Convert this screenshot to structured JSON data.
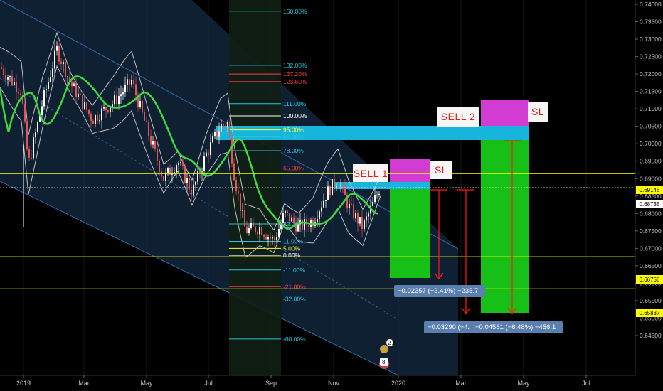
{
  "chart_data": {
    "type": "candlestick",
    "x_tick_labels": [
      "2019",
      "Mar",
      "May",
      "Jul",
      "Sep",
      "Nov",
      "2020",
      "Mar",
      "May",
      "Jul"
    ],
    "ylim": [
      0.642,
      0.742
    ],
    "y_ticks": [
      0.74,
      0.735,
      0.73,
      0.725,
      0.72,
      0.715,
      0.71,
      0.705,
      0.7,
      0.695,
      0.69,
      0.685,
      0.68,
      0.675,
      0.67,
      0.665,
      0.66,
      0.655,
      0.65,
      0.645
    ],
    "y_tick_labels": [
      "0.74000",
      "0.73500",
      "0.73000",
      "0.72500",
      "0.72000",
      "0.71500",
      "0.71000",
      "0.70500",
      "0.70000",
      "0.69500",
      "0.69000",
      "0.68500",
      "0.68000",
      "0.67500",
      "0.67000",
      "0.66500",
      "0.66000",
      "0.65500",
      "0.65000",
      "0.64500"
    ],
    "horizontal_levels": [
      {
        "price": 0.69146,
        "label": "0.69146",
        "color": "#ffff00",
        "style": "solid"
      },
      {
        "price": 0.68735,
        "label": "0.68735",
        "color": "#ffffff",
        "style": "dotted"
      },
      {
        "price": 0.66756,
        "label": "0.66756",
        "color": "#ffff00",
        "style": "solid"
      },
      {
        "price": 0.65837,
        "label": "0.65837",
        "color": "#ffff00",
        "style": "solid"
      }
    ],
    "fib_levels": [
      {
        "label": "160.00%",
        "price": 0.738,
        "color": "#26c6da"
      },
      {
        "label": "132.00%",
        "price": 0.7225,
        "color": "#26c6da"
      },
      {
        "label": "127.20%",
        "price": 0.72,
        "color": "#ff3b3b"
      },
      {
        "label": "123.60%",
        "price": 0.7178,
        "color": "#ff3b3b"
      },
      {
        "label": "111.00%",
        "price": 0.7115,
        "color": "#26c6da"
      },
      {
        "label": "100.00%",
        "price": 0.708,
        "color": "#ffffff"
      },
      {
        "label": "95.00%",
        "price": 0.704,
        "color": "#ffff33"
      },
      {
        "label": "88.00%",
        "price": 0.702,
        "color": "#26c6da"
      },
      {
        "label": "78.00%",
        "price": 0.698,
        "color": "#26c6da"
      },
      {
        "label": "65.00%",
        "price": 0.693,
        "color": "#ff3b3b"
      },
      {
        "label": "22.00%",
        "price": 0.677,
        "color": "#26c6da"
      },
      {
        "label": "11.00%",
        "price": 0.672,
        "color": "#26c6da"
      },
      {
        "label": "5.00%",
        "price": 0.67,
        "color": "#ffff33"
      },
      {
        "label": "0.00%",
        "price": 0.668,
        "color": "#ffffff"
      },
      {
        "label": "-11.00%",
        "price": 0.6638,
        "color": "#26c6da"
      },
      {
        "label": "-21.00%",
        "price": 0.659,
        "color": "#ff3b3b"
      },
      {
        "label": "-32.00%",
        "price": 0.6555,
        "color": "#26c6da"
      },
      {
        "label": "-60.00%",
        "price": 0.644,
        "color": "#26c6da"
      }
    ],
    "trade_labels": [
      "SELL 1",
      "SL",
      "SELL  2",
      "SL"
    ],
    "measure_labels": [
      "−0.02357 (−3.41%) −235.7",
      "−0.03290 (−4.",
      "−0.04561 (−6.48%) −456.1"
    ],
    "event_badge_text": [
      "2",
      "2",
      "8"
    ]
  },
  "colors": {
    "background": "#000000",
    "channel_fill": "#1b3a5c",
    "zone_blue": "#17b4dc",
    "sl_magenta": "#d23cd2",
    "tp_green": "#17c017",
    "ema": "#3ddc3d",
    "arrow_red": "#ff1a1a"
  }
}
